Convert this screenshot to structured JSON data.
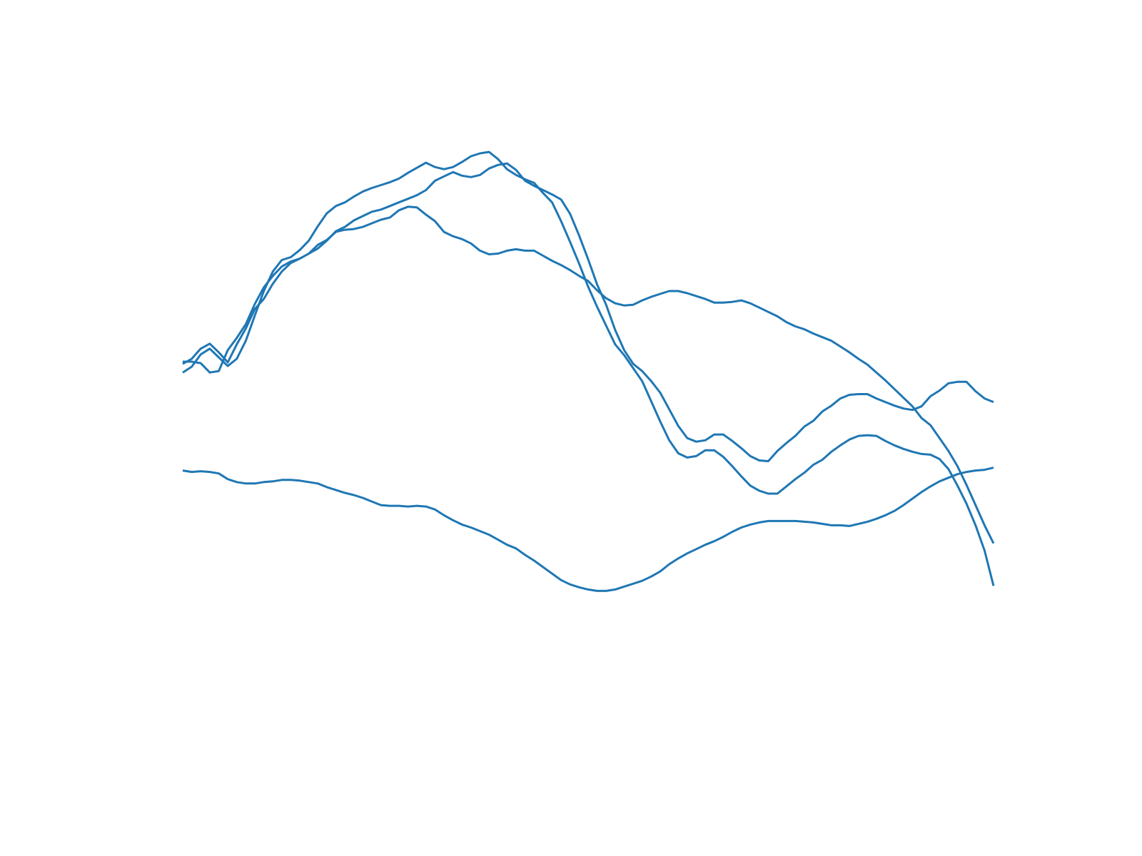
{
  "chart_data": {
    "type": "line",
    "title": "",
    "xlabel": "",
    "ylabel": "",
    "axes_visible": false,
    "grid": false,
    "xlim": [
      0,
      90
    ],
    "ylim": [
      -0.5,
      9.0
    ],
    "color": "#1f77b4",
    "x": [
      0,
      1,
      2,
      3,
      4,
      5,
      6,
      7,
      8,
      9,
      10,
      11,
      12,
      13,
      14,
      15,
      16,
      17,
      18,
      19,
      20,
      21,
      22,
      23,
      24,
      25,
      26,
      27,
      28,
      29,
      30,
      31,
      32,
      33,
      34,
      35,
      36,
      37,
      38,
      39,
      40,
      41,
      42,
      43,
      44,
      45,
      46,
      47,
      48,
      49,
      50,
      51,
      52,
      53,
      54,
      55,
      56,
      57,
      58,
      59,
      60,
      61,
      62,
      63,
      64,
      65,
      66,
      67,
      68,
      69,
      70,
      71,
      72,
      73,
      74,
      75,
      76,
      77,
      78,
      79,
      80,
      81,
      82,
      83,
      84,
      85,
      86,
      87,
      88,
      89,
      90
    ],
    "series": [
      {
        "values": [
          5.14,
          5.21,
          5.35,
          5.42,
          5.3,
          5.16,
          5.41,
          5.63,
          5.9,
          6.04,
          6.25,
          6.42,
          6.54,
          6.6,
          6.67,
          6.74,
          6.85,
          6.98,
          7.04,
          7.13,
          7.19,
          7.25,
          7.28,
          7.33,
          7.38,
          7.43,
          7.48,
          7.55,
          7.68,
          7.74,
          7.8,
          7.75,
          7.73,
          7.76,
          7.85,
          7.9,
          7.92,
          7.83,
          7.68,
          7.61,
          7.55,
          7.49,
          7.42,
          7.22,
          6.92,
          6.59,
          6.24,
          5.96,
          5.61,
          5.33,
          5.14,
          5.04,
          4.9,
          4.74,
          4.51,
          4.28,
          4.11,
          4.06,
          4.08,
          4.16,
          4.16,
          4.07,
          3.97,
          3.86,
          3.8,
          3.79,
          3.93,
          4.04,
          4.14,
          4.27,
          4.35,
          4.48,
          4.56,
          4.66,
          4.71,
          4.72,
          4.72,
          4.66,
          4.61,
          4.56,
          4.52,
          4.5,
          4.55,
          4.69,
          4.77,
          4.87,
          4.89,
          4.89,
          4.76,
          4.66,
          4.61
        ]
      },
      {
        "values": [
          5.17,
          5.17,
          5.15,
          5.02,
          5.04,
          5.33,
          5.5,
          5.69,
          5.97,
          6.2,
          6.36,
          6.49,
          6.56,
          6.6,
          6.67,
          6.79,
          6.86,
          6.97,
          7.0,
          7.01,
          7.04,
          7.09,
          7.14,
          7.17,
          7.27,
          7.32,
          7.31,
          7.21,
          7.12,
          6.97,
          6.91,
          6.87,
          6.81,
          6.71,
          6.66,
          6.67,
          6.71,
          6.73,
          6.71,
          6.71,
          6.64,
          6.57,
          6.51,
          6.44,
          6.36,
          6.29,
          6.16,
          6.05,
          5.98,
          5.95,
          5.96,
          6.02,
          6.07,
          6.11,
          6.15,
          6.15,
          6.12,
          6.08,
          6.04,
          5.99,
          5.99,
          6.0,
          6.02,
          5.98,
          5.92,
          5.86,
          5.8,
          5.72,
          5.66,
          5.62,
          5.56,
          5.51,
          5.46,
          5.38,
          5.3,
          5.21,
          5.13,
          5.02,
          4.91,
          4.79,
          4.67,
          4.55,
          4.39,
          4.29,
          4.11,
          3.93,
          3.72,
          3.46,
          3.18,
          2.9,
          2.65
        ]
      },
      {
        "values": [
          3.66,
          3.64,
          3.65,
          3.64,
          3.62,
          3.54,
          3.5,
          3.48,
          3.48,
          3.5,
          3.51,
          3.53,
          3.53,
          3.52,
          3.5,
          3.48,
          3.43,
          3.39,
          3.35,
          3.32,
          3.28,
          3.23,
          3.18,
          3.17,
          3.17,
          3.16,
          3.17,
          3.16,
          3.12,
          3.04,
          2.97,
          2.91,
          2.87,
          2.82,
          2.77,
          2.7,
          2.63,
          2.58,
          2.49,
          2.41,
          2.32,
          2.23,
          2.14,
          2.08,
          2.04,
          2.01,
          1.99,
          1.99,
          2.01,
          2.05,
          2.09,
          2.13,
          2.19,
          2.26,
          2.36,
          2.44,
          2.51,
          2.57,
          2.63,
          2.68,
          2.74,
          2.81,
          2.87,
          2.91,
          2.94,
          2.96,
          2.96,
          2.96,
          2.96,
          2.95,
          2.94,
          2.92,
          2.9,
          2.9,
          2.89,
          2.92,
          2.95,
          2.99,
          3.04,
          3.1,
          3.18,
          3.27,
          3.36,
          3.44,
          3.51,
          3.56,
          3.61,
          3.64,
          3.66,
          3.67,
          3.7
        ]
      },
      {
        "values": [
          5.02,
          5.1,
          5.27,
          5.35,
          5.23,
          5.11,
          5.21,
          5.46,
          5.81,
          6.15,
          6.42,
          6.58,
          6.62,
          6.72,
          6.85,
          7.05,
          7.23,
          7.33,
          7.38,
          7.46,
          7.53,
          7.58,
          7.62,
          7.66,
          7.71,
          7.79,
          7.86,
          7.93,
          7.87,
          7.84,
          7.87,
          7.94,
          8.02,
          8.06,
          8.08,
          7.98,
          7.84,
          7.76,
          7.7,
          7.65,
          7.51,
          7.38,
          7.12,
          6.83,
          6.53,
          6.21,
          5.93,
          5.67,
          5.41,
          5.26,
          5.08,
          4.9,
          4.62,
          4.34,
          4.08,
          3.9,
          3.84,
          3.86,
          3.94,
          3.94,
          3.85,
          3.72,
          3.58,
          3.45,
          3.38,
          3.34,
          3.34,
          3.44,
          3.54,
          3.63,
          3.74,
          3.81,
          3.92,
          4.01,
          4.09,
          4.14,
          4.15,
          4.14,
          4.07,
          4.01,
          3.96,
          3.92,
          3.89,
          3.88,
          3.82,
          3.68,
          3.45,
          3.2,
          2.9,
          2.55,
          2.06
        ]
      }
    ]
  }
}
